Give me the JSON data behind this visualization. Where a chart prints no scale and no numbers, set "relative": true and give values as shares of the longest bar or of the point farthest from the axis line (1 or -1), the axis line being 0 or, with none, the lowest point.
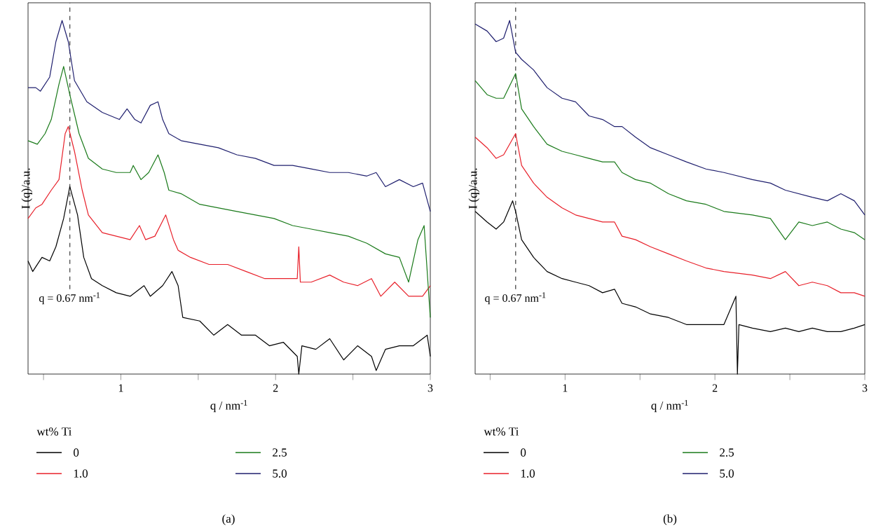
{
  "chart_data": [
    {
      "type": "line",
      "title": "(a)",
      "xlabel": "q / nm$^{-1}$",
      "ylabel": "I (q)/a.u.",
      "legend_title": "wt% Ti",
      "legend": "bottom",
      "relative": true,
      "line_style": "solid",
      "marker": "none",
      "xlim": [
        0.4,
        3
      ],
      "xticks": [
        {
          "value": 0.5,
          "label": null
        },
        1,
        {
          "value": 1.5,
          "label": null
        },
        2,
        {
          "value": 2.5,
          "label": null
        },
        3
      ],
      "ref_lines": [
        {
          "axis": "x",
          "value": 0.67,
          "label": "q = 0.67 nm$^{-1}$",
          "color": "#555555",
          "line_style": "dashed"
        }
      ],
      "series": [
        {
          "name": "0",
          "color": "#000000",
          "x": [
            0.4,
            0.43,
            0.49,
            0.54,
            0.58,
            0.63,
            0.67,
            0.72,
            0.76,
            0.81,
            0.88,
            0.97,
            1.06,
            1.15,
            1.19,
            1.27,
            1.33,
            1.37,
            1.4,
            1.51,
            1.6,
            1.69,
            1.78,
            1.87,
            1.96,
            2.05,
            2.14,
            2.15,
            2.17,
            2.26,
            2.35,
            2.44,
            2.53,
            2.62,
            2.65,
            2.71,
            2.8,
            2.89,
            2.98,
            3.0
          ],
          "values": [
            0.32,
            0.29,
            0.33,
            0.32,
            0.36,
            0.44,
            0.53,
            0.45,
            0.33,
            0.27,
            0.25,
            0.23,
            0.22,
            0.25,
            0.22,
            0.25,
            0.29,
            0.25,
            0.16,
            0.15,
            0.11,
            0.14,
            0.11,
            0.11,
            0.08,
            0.09,
            0.05,
            0,
            0.08,
            0.07,
            0.1,
            0.04,
            0.08,
            0.05,
            0.01,
            0.07,
            0.08,
            0.08,
            0.11,
            0.05
          ]
        },
        {
          "name": "1.0",
          "color": "#e8202a",
          "x": [
            0.4,
            0.45,
            0.49,
            0.55,
            0.6,
            0.64,
            0.66,
            0.7,
            0.75,
            0.79,
            0.88,
            0.97,
            1.06,
            1.12,
            1.16,
            1.22,
            1.29,
            1.34,
            1.37,
            1.45,
            1.57,
            1.69,
            1.81,
            1.93,
            2.05,
            2.14,
            2.15,
            2.16,
            2.23,
            2.35,
            2.44,
            2.53,
            2.62,
            2.68,
            2.77,
            2.86,
            2.95,
            3.0
          ],
          "values": [
            0.44,
            0.47,
            0.48,
            0.52,
            0.55,
            0.68,
            0.7,
            0.63,
            0.52,
            0.45,
            0.4,
            0.39,
            0.38,
            0.42,
            0.38,
            0.39,
            0.45,
            0.38,
            0.35,
            0.33,
            0.31,
            0.31,
            0.29,
            0.27,
            0.27,
            0.27,
            0.36,
            0.26,
            0.26,
            0.28,
            0.26,
            0.25,
            0.27,
            0.22,
            0.26,
            0.22,
            0.22,
            0.25
          ]
        },
        {
          "name": "2.5",
          "color": "#1a7a1a",
          "x": [
            0.4,
            0.46,
            0.51,
            0.55,
            0.6,
            0.63,
            0.67,
            0.73,
            0.79,
            0.88,
            0.97,
            1.06,
            1.08,
            1.13,
            1.18,
            1.24,
            1.28,
            1.31,
            1.39,
            1.51,
            1.63,
            1.75,
            1.87,
            1.99,
            2.11,
            2.23,
            2.35,
            2.47,
            2.59,
            2.71,
            2.8,
            2.86,
            2.92,
            2.96,
            3.0
          ],
          "values": [
            0.66,
            0.65,
            0.68,
            0.72,
            0.82,
            0.87,
            0.79,
            0.68,
            0.61,
            0.58,
            0.57,
            0.57,
            0.59,
            0.55,
            0.57,
            0.62,
            0.57,
            0.52,
            0.51,
            0.48,
            0.47,
            0.46,
            0.45,
            0.44,
            0.42,
            0.41,
            0.4,
            0.39,
            0.37,
            0.34,
            0.33,
            0.26,
            0.38,
            0.42,
            0.16
          ]
        },
        {
          "name": "5.0",
          "color": "#1f1f6e",
          "x": [
            0.4,
            0.45,
            0.48,
            0.54,
            0.58,
            0.62,
            0.66,
            0.7,
            0.78,
            0.88,
            0.99,
            1.04,
            1.09,
            1.13,
            1.19,
            1.24,
            1.27,
            1.31,
            1.39,
            1.51,
            1.63,
            1.75,
            1.87,
            1.99,
            2.11,
            2.23,
            2.35,
            2.47,
            2.59,
            2.65,
            2.71,
            2.8,
            2.89,
            2.95,
            3.0
          ],
          "values": [
            0.81,
            0.81,
            0.8,
            0.84,
            0.94,
            1,
            0.94,
            0.83,
            0.77,
            0.74,
            0.72,
            0.75,
            0.72,
            0.71,
            0.76,
            0.77,
            0.72,
            0.68,
            0.66,
            0.65,
            0.64,
            0.62,
            0.61,
            0.59,
            0.59,
            0.58,
            0.57,
            0.57,
            0.56,
            0.57,
            0.53,
            0.55,
            0.53,
            0.54,
            0.46
          ]
        }
      ]
    },
    {
      "type": "line",
      "title": "(b)",
      "xlabel": "q / nm$^{-1}$",
      "ylabel": "I (q)/a.u.",
      "legend_title": "wt% Ti",
      "legend": "bottom",
      "relative": true,
      "line_style": "solid",
      "marker": "none",
      "xlim": [
        0.4,
        3
      ],
      "xticks": [
        {
          "value": 0.5,
          "label": null
        },
        1,
        {
          "value": 1.5,
          "label": null
        },
        2,
        {
          "value": 2.5,
          "label": null
        },
        3
      ],
      "ref_lines": [
        {
          "axis": "x",
          "value": 0.67,
          "label": "q = 0.67 nm$^{-1}$",
          "color": "#555555",
          "line_style": "dashed"
        }
      ],
      "series": [
        {
          "name": "0",
          "color": "#000000",
          "x": [
            0.4,
            0.48,
            0.54,
            0.59,
            0.65,
            0.67,
            0.71,
            0.79,
            0.88,
            0.98,
            1.07,
            1.16,
            1.25,
            1.33,
            1.38,
            1.47,
            1.57,
            1.69,
            1.81,
            1.94,
            2.06,
            2.14,
            2.15,
            2.16,
            2.25,
            2.37,
            2.47,
            2.56,
            2.65,
            2.75,
            2.84,
            2.93,
            3.0
          ],
          "values": [
            0.46,
            0.43,
            0.41,
            0.43,
            0.49,
            0.46,
            0.38,
            0.33,
            0.29,
            0.27,
            0.26,
            0.25,
            0.23,
            0.24,
            0.2,
            0.19,
            0.17,
            0.16,
            0.14,
            0.14,
            0.14,
            0.22,
            0,
            0.14,
            0.13,
            0.12,
            0.13,
            0.12,
            0.13,
            0.12,
            0.12,
            0.13,
            0.14
          ]
        },
        {
          "name": "1.0",
          "color": "#e8202a",
          "x": [
            0.4,
            0.48,
            0.54,
            0.59,
            0.67,
            0.71,
            0.79,
            0.88,
            0.98,
            1.07,
            1.16,
            1.25,
            1.33,
            1.38,
            1.47,
            1.57,
            1.69,
            1.81,
            1.94,
            2.06,
            2.25,
            2.37,
            2.47,
            2.56,
            2.65,
            2.75,
            2.84,
            2.93,
            3.0
          ],
          "values": [
            0.67,
            0.64,
            0.61,
            0.62,
            0.68,
            0.59,
            0.54,
            0.5,
            0.47,
            0.45,
            0.44,
            0.43,
            0.43,
            0.39,
            0.38,
            0.36,
            0.34,
            0.32,
            0.3,
            0.29,
            0.28,
            0.27,
            0.29,
            0.25,
            0.26,
            0.25,
            0.23,
            0.23,
            0.22
          ]
        },
        {
          "name": "2.5",
          "color": "#1a7a1a",
          "x": [
            0.4,
            0.48,
            0.54,
            0.59,
            0.67,
            0.71,
            0.79,
            0.88,
            0.98,
            1.07,
            1.16,
            1.25,
            1.33,
            1.38,
            1.47,
            1.57,
            1.69,
            1.81,
            1.94,
            2.06,
            2.25,
            2.37,
            2.47,
            2.56,
            2.65,
            2.75,
            2.84,
            2.93,
            3.0
          ],
          "values": [
            0.83,
            0.79,
            0.78,
            0.78,
            0.85,
            0.75,
            0.7,
            0.65,
            0.63,
            0.62,
            0.61,
            0.6,
            0.6,
            0.57,
            0.55,
            0.54,
            0.51,
            0.49,
            0.48,
            0.46,
            0.45,
            0.44,
            0.38,
            0.43,
            0.42,
            0.43,
            0.41,
            0.4,
            0.38
          ]
        },
        {
          "name": "5.0",
          "color": "#1f1f6e",
          "x": [
            0.4,
            0.48,
            0.54,
            0.59,
            0.63,
            0.67,
            0.71,
            0.79,
            0.88,
            0.98,
            1.07,
            1.16,
            1.25,
            1.33,
            1.38,
            1.47,
            1.57,
            1.69,
            1.81,
            1.94,
            2.06,
            2.25,
            2.37,
            2.47,
            2.56,
            2.65,
            2.75,
            2.84,
            2.93,
            3.0
          ],
          "values": [
            0.99,
            0.97,
            0.94,
            0.95,
            1,
            0.91,
            0.89,
            0.86,
            0.81,
            0.78,
            0.77,
            0.73,
            0.72,
            0.7,
            0.7,
            0.67,
            0.64,
            0.62,
            0.6,
            0.58,
            0.57,
            0.55,
            0.54,
            0.52,
            0.51,
            0.5,
            0.49,
            0.51,
            0.49,
            0.45
          ]
        }
      ]
    }
  ]
}
